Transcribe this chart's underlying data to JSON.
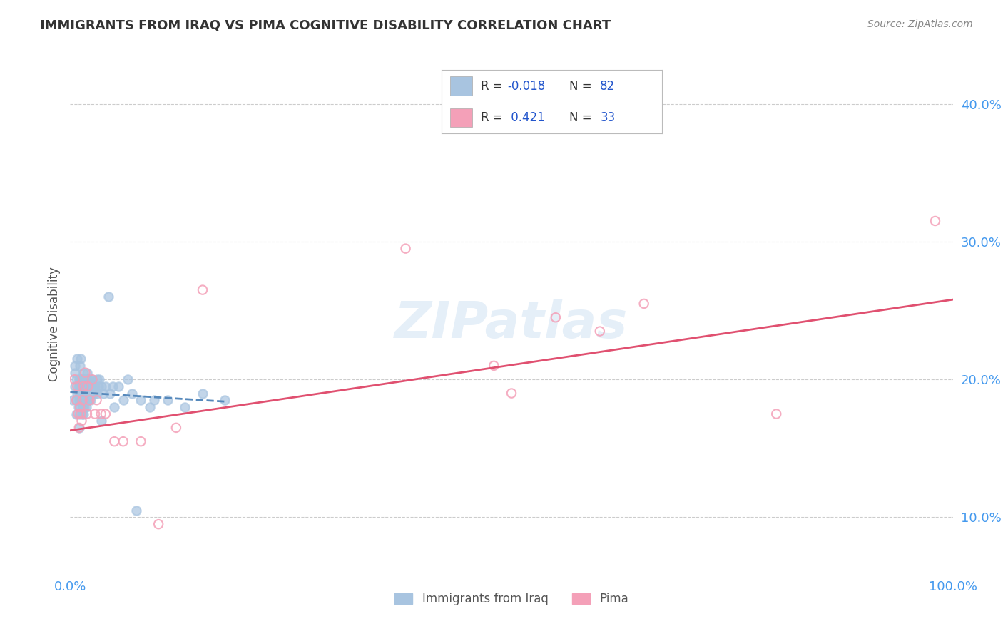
{
  "title": "IMMIGRANTS FROM IRAQ VS PIMA COGNITIVE DISABILITY CORRELATION CHART",
  "source_text": "Source: ZipAtlas.com",
  "ylabel": "Cognitive Disability",
  "legend_label_1": "Immigrants from Iraq",
  "legend_label_2": "Pima",
  "R1": -0.018,
  "N1": 82,
  "R2": 0.421,
  "N2": 33,
  "color1": "#a8c4e0",
  "color2": "#f4a0b8",
  "line_color1": "#5588bb",
  "line_color2": "#e05070",
  "xmin": 0.0,
  "xmax": 1.0,
  "ymin": 0.06,
  "ymax": 0.42,
  "yticks": [
    0.1,
    0.2,
    0.3,
    0.4
  ],
  "ytick_labels": [
    "10.0%",
    "20.0%",
    "30.0%",
    "40.0%"
  ],
  "xticks": [
    0.0,
    0.25,
    0.5,
    0.75,
    1.0
  ],
  "xtick_labels": [
    "0.0%",
    "",
    "",
    "",
    "100.0%"
  ],
  "scatter1_x": [
    0.003,
    0.005,
    0.005,
    0.005,
    0.007,
    0.007,
    0.007,
    0.008,
    0.008,
    0.009,
    0.009,
    0.01,
    0.01,
    0.01,
    0.01,
    0.01,
    0.011,
    0.011,
    0.011,
    0.012,
    0.012,
    0.012,
    0.012,
    0.013,
    0.013,
    0.013,
    0.014,
    0.014,
    0.014,
    0.015,
    0.015,
    0.015,
    0.015,
    0.016,
    0.016,
    0.016,
    0.017,
    0.017,
    0.018,
    0.018,
    0.018,
    0.019,
    0.019,
    0.02,
    0.02,
    0.02,
    0.021,
    0.021,
    0.022,
    0.022,
    0.023,
    0.023,
    0.024,
    0.025,
    0.025,
    0.026,
    0.027,
    0.028,
    0.03,
    0.03,
    0.032,
    0.033,
    0.035,
    0.038,
    0.04,
    0.043,
    0.045,
    0.048,
    0.05,
    0.055,
    0.06,
    0.065,
    0.07,
    0.08,
    0.095,
    0.11,
    0.13,
    0.15,
    0.175,
    0.09,
    0.035,
    0.075
  ],
  "scatter1_y": [
    0.185,
    0.21,
    0.195,
    0.205,
    0.2,
    0.185,
    0.175,
    0.19,
    0.215,
    0.195,
    0.18,
    0.2,
    0.19,
    0.185,
    0.175,
    0.165,
    0.195,
    0.21,
    0.18,
    0.2,
    0.19,
    0.185,
    0.215,
    0.195,
    0.185,
    0.175,
    0.2,
    0.19,
    0.18,
    0.205,
    0.195,
    0.185,
    0.175,
    0.2,
    0.19,
    0.18,
    0.195,
    0.185,
    0.2,
    0.19,
    0.18,
    0.205,
    0.195,
    0.2,
    0.19,
    0.185,
    0.195,
    0.185,
    0.2,
    0.19,
    0.195,
    0.185,
    0.19,
    0.2,
    0.19,
    0.195,
    0.19,
    0.195,
    0.2,
    0.19,
    0.195,
    0.2,
    0.195,
    0.19,
    0.195,
    0.26,
    0.19,
    0.195,
    0.18,
    0.195,
    0.185,
    0.2,
    0.19,
    0.185,
    0.185,
    0.185,
    0.18,
    0.19,
    0.185,
    0.18,
    0.17,
    0.105
  ],
  "scatter2_x": [
    0.005,
    0.007,
    0.008,
    0.009,
    0.01,
    0.011,
    0.012,
    0.013,
    0.014,
    0.015,
    0.017,
    0.019,
    0.02,
    0.022,
    0.025,
    0.028,
    0.03,
    0.035,
    0.04,
    0.05,
    0.06,
    0.08,
    0.1,
    0.12,
    0.15,
    0.38,
    0.48,
    0.5,
    0.55,
    0.6,
    0.65,
    0.8,
    0.98
  ],
  "scatter2_y": [
    0.2,
    0.185,
    0.195,
    0.175,
    0.165,
    0.18,
    0.175,
    0.17,
    0.185,
    0.195,
    0.205,
    0.175,
    0.195,
    0.185,
    0.2,
    0.175,
    0.185,
    0.175,
    0.175,
    0.155,
    0.155,
    0.155,
    0.095,
    0.165,
    0.265,
    0.295,
    0.21,
    0.19,
    0.245,
    0.235,
    0.255,
    0.175,
    0.315
  ],
  "trendline1_x": [
    0.0,
    0.175
  ],
  "trendline1_y": [
    0.191,
    0.184
  ],
  "trendline2_x": [
    0.0,
    1.0
  ],
  "trendline2_y": [
    0.163,
    0.258
  ]
}
